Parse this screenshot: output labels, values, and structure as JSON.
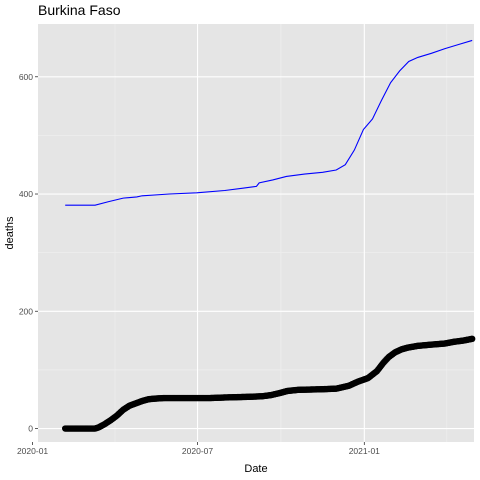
{
  "chart_data": {
    "type": "line",
    "title": "Burkina Faso",
    "xlabel": "Date",
    "ylabel": "deaths",
    "x_ticks": [
      {
        "date": "2020-01-01",
        "label": "2020-01"
      },
      {
        "date": "2020-07-01",
        "label": "2020-07"
      },
      {
        "date": "2021-01-01",
        "label": "2021-01"
      }
    ],
    "y_ticks": [
      0,
      200,
      400,
      600
    ],
    "xlim": [
      "2020-01-07",
      "2021-05-02"
    ],
    "ylim": [
      -23,
      690
    ],
    "grid": true,
    "legend": "none",
    "colors": {
      "panel": "#e5e5e5",
      "grid_major": "#ffffff",
      "grid_minor": "#f0f0f0",
      "series_blue": "#0000ff",
      "series_black": "#000000"
    },
    "series": [
      {
        "style": "line",
        "color": "#0000ff",
        "points": [
          [
            "2020-02-06",
            381
          ],
          [
            "2020-03-10",
            381
          ],
          [
            "2020-03-25",
            387
          ],
          [
            "2020-04-10",
            393
          ],
          [
            "2020-04-25",
            395
          ],
          [
            "2020-05-01",
            397
          ],
          [
            "2020-05-31",
            400
          ],
          [
            "2020-06-30",
            402
          ],
          [
            "2020-07-31",
            406
          ],
          [
            "2020-08-20",
            410
          ],
          [
            "2020-09-04",
            413
          ],
          [
            "2020-09-07",
            419
          ],
          [
            "2020-09-22",
            424
          ],
          [
            "2020-10-07",
            430
          ],
          [
            "2020-10-27",
            434
          ],
          [
            "2020-11-16",
            437
          ],
          [
            "2020-12-01",
            441
          ],
          [
            "2020-12-11",
            450
          ],
          [
            "2020-12-21",
            475
          ],
          [
            "2020-12-31",
            510
          ],
          [
            "2021-01-10",
            528
          ],
          [
            "2021-01-20",
            560
          ],
          [
            "2021-01-30",
            590
          ],
          [
            "2021-02-09",
            610
          ],
          [
            "2021-02-19",
            626
          ],
          [
            "2021-03-01",
            633
          ],
          [
            "2021-03-16",
            640
          ],
          [
            "2021-03-31",
            648
          ],
          [
            "2021-04-15",
            655
          ],
          [
            "2021-04-30",
            662
          ]
        ]
      },
      {
        "style": "points",
        "color": "#000000",
        "points": [
          [
            "2020-02-06",
            0
          ],
          [
            "2020-03-10",
            0
          ],
          [
            "2020-03-14",
            2
          ],
          [
            "2020-03-20",
            7
          ],
          [
            "2020-03-27",
            14
          ],
          [
            "2020-04-03",
            22
          ],
          [
            "2020-04-10",
            32
          ],
          [
            "2020-04-17",
            39
          ],
          [
            "2020-04-24",
            43
          ],
          [
            "2020-05-01",
            47
          ],
          [
            "2020-05-08",
            50
          ],
          [
            "2020-05-15",
            51
          ],
          [
            "2020-05-25",
            52
          ],
          [
            "2020-06-15",
            52
          ],
          [
            "2020-07-15",
            52
          ],
          [
            "2020-08-01",
            53
          ],
          [
            "2020-08-25",
            54
          ],
          [
            "2020-09-10",
            55
          ],
          [
            "2020-09-20",
            57
          ],
          [
            "2020-10-01",
            61
          ],
          [
            "2020-10-08",
            64
          ],
          [
            "2020-10-20",
            66
          ],
          [
            "2020-11-15",
            67
          ],
          [
            "2020-12-01",
            68
          ],
          [
            "2020-12-15",
            73
          ],
          [
            "2020-12-25",
            80
          ],
          [
            "2021-01-05",
            86
          ],
          [
            "2021-01-15",
            98
          ],
          [
            "2021-01-22",
            112
          ],
          [
            "2021-01-28",
            122
          ],
          [
            "2021-02-04",
            130
          ],
          [
            "2021-02-11",
            135
          ],
          [
            "2021-02-18",
            138
          ],
          [
            "2021-03-01",
            141
          ],
          [
            "2021-03-15",
            143
          ],
          [
            "2021-03-31",
            145
          ],
          [
            "2021-04-10",
            148
          ],
          [
            "2021-04-20",
            150
          ],
          [
            "2021-04-30",
            153
          ]
        ]
      }
    ]
  }
}
